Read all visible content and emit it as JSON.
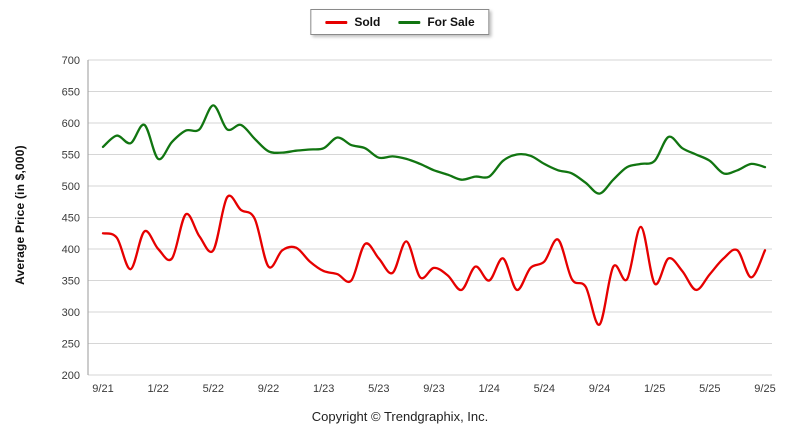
{
  "footer": {
    "copyright": "Copyright © Trendgraphix, Inc."
  },
  "chart_data": {
    "type": "line",
    "title": "",
    "xlabel": "",
    "ylabel": "Average Price (in $,000)",
    "ylim": [
      200,
      700
    ],
    "ytick_step": 50,
    "grid": "horizontal",
    "legend_position": "top-center",
    "x_tick_labels": [
      "9/21",
      "1/22",
      "5/22",
      "9/22",
      "1/23",
      "5/23",
      "9/23",
      "1/24",
      "5/24",
      "9/24",
      "1/25",
      "5/25",
      "9/25"
    ],
    "categories": [
      "9/21",
      "10/21",
      "11/21",
      "12/21",
      "1/22",
      "2/22",
      "3/22",
      "4/22",
      "5/22",
      "6/22",
      "7/22",
      "8/22",
      "9/22",
      "10/22",
      "11/22",
      "12/22",
      "1/23",
      "2/23",
      "3/23",
      "4/23",
      "5/23",
      "6/23",
      "7/23",
      "8/23",
      "9/23",
      "10/23",
      "11/23",
      "12/23",
      "1/24",
      "2/24",
      "3/24",
      "4/24",
      "5/24",
      "6/24",
      "7/24",
      "8/24",
      "9/24",
      "10/24",
      "11/24",
      "12/24",
      "1/25",
      "2/25",
      "3/25",
      "4/25",
      "5/25",
      "6/25",
      "7/25",
      "8/25",
      "9/25"
    ],
    "series": [
      {
        "name": "Sold",
        "color": "#e60000",
        "values": [
          425,
          418,
          368,
          428,
          400,
          385,
          455,
          420,
          398,
          482,
          462,
          448,
          372,
          398,
          402,
          380,
          365,
          360,
          350,
          408,
          385,
          362,
          412,
          355,
          370,
          358,
          335,
          372,
          350,
          385,
          335,
          370,
          380,
          415,
          352,
          340,
          280,
          372,
          352,
          435,
          345,
          385,
          365,
          335,
          360,
          385,
          398,
          355,
          398
        ]
      },
      {
        "name": "For Sale",
        "color": "#117511",
        "values": [
          562,
          580,
          568,
          597,
          543,
          570,
          588,
          590,
          628,
          590,
          597,
          575,
          555,
          553,
          556,
          558,
          560,
          577,
          565,
          560,
          545,
          547,
          543,
          535,
          525,
          518,
          510,
          515,
          515,
          540,
          550,
          548,
          535,
          525,
          520,
          505,
          488,
          510,
          530,
          535,
          540,
          578,
          560,
          550,
          540,
          520,
          525,
          535,
          530
        ]
      }
    ],
    "axis_color": "#999999",
    "gridline_color": "#d6d6d6",
    "tick_label_color": "#3a3a3a"
  }
}
